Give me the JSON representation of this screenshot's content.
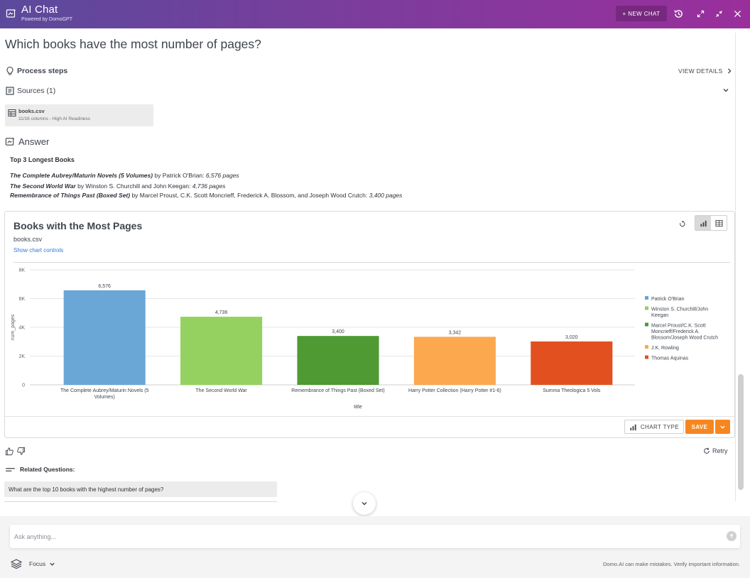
{
  "header": {
    "title": "AI Chat",
    "subtitle": "Powered by DomoGPT",
    "new_chat_label": "+ NEW CHAT",
    "icons": [
      "chat-logo-icon",
      "history-icon",
      "expand-icon",
      "collapse-icon",
      "close-icon"
    ]
  },
  "question": "Which books have the most number of pages?",
  "process_steps": {
    "label": "Process steps",
    "view_details": "VIEW DETAILS"
  },
  "sources": {
    "label": "Sources (1)",
    "items": [
      {
        "name": "books.csv",
        "meta": "11/16 columns - High AI Readiness"
      }
    ]
  },
  "answer": {
    "label": "Answer",
    "heading": "Top 3 Longest Books",
    "lines": [
      {
        "title": "The Complete Aubrey/Maturin Novels (5 Volumes)",
        "by": " by Patrick O'Brian: ",
        "pages": "6,576 pages"
      },
      {
        "title": "The Second World War",
        "by": " by Winston S. Churchill and John Keegan: ",
        "pages": "4,736 pages"
      },
      {
        "title": "Remembrance of Things Past (Boxed Set)",
        "by": " by Marcel Proust, C.K. Scott Moncrieff, Frederick A. Blossom, and Joseph Wood Crutch: ",
        "pages": "3,400 pages"
      }
    ]
  },
  "chart_card": {
    "title": "Books with the Most Pages",
    "source": "books.csv",
    "show_controls": "Show chart controls",
    "chart_type_label": "CHART TYPE",
    "save_label": "SAVE"
  },
  "chart_data": {
    "type": "bar",
    "title": "Books with the Most Pages",
    "xlabel": "title",
    "ylabel": "num_pages",
    "ylim": [
      0,
      8000
    ],
    "yticks": [
      "0",
      "2K",
      "4K",
      "6K",
      "8K"
    ],
    "categories": [
      "The Complete Aubrey/Maturin Novels (5 Volumes)",
      "The Second World War",
      "Remembrance of Things Past (Boxed Set)",
      "Harry Potter Collection (Harry Potter  #1-6)",
      "Summa Theologica  5 Vols"
    ],
    "category_lines": [
      [
        "The Complete Aubrey/Maturin Novels (5",
        "Volumes)"
      ],
      [
        "The Second World War"
      ],
      [
        "Remembrance of Things Past (Boxed Set)"
      ],
      [
        "Harry Potter Collection (Harry Potter  #1-6)"
      ],
      [
        "Summa Theologica  5 Vols"
      ]
    ],
    "values": [
      6576,
      4736,
      3400,
      3342,
      3020
    ],
    "value_labels": [
      "6,576",
      "4,736",
      "3,400",
      "3,342",
      "3,020"
    ],
    "colors": [
      "#6aa6d6",
      "#94d160",
      "#4f9a33",
      "#fba84f",
      "#e2501f"
    ],
    "legend_position": "right",
    "legend": [
      {
        "lines": [
          "Patrick O'Brian"
        ],
        "color": "#6aa6d6"
      },
      {
        "lines": [
          "Winston S. Churchill/John",
          "Keegan"
        ],
        "color": "#94d160"
      },
      {
        "lines": [
          "Marcel Proust/C.K. Scott",
          "Moncrieff/Frederick A.",
          "Blossom/Joseph Wood Crutch"
        ],
        "color": "#4f9a33"
      },
      {
        "lines": [
          "J.K. Rowling"
        ],
        "color": "#fba84f"
      },
      {
        "lines": [
          "Thomas Aquinas"
        ],
        "color": "#e2501f"
      }
    ],
    "grid": true
  },
  "feedback": {
    "retry_label": "Retry"
  },
  "related": {
    "label": "Related Questions:",
    "questions": [
      "What are the top 10 books with the highest number of pages?"
    ]
  },
  "input": {
    "placeholder": "Ask anything...",
    "focus_label": "Focus",
    "disclaimer": "Domo.AI can make mistakes. Verify important information."
  }
}
